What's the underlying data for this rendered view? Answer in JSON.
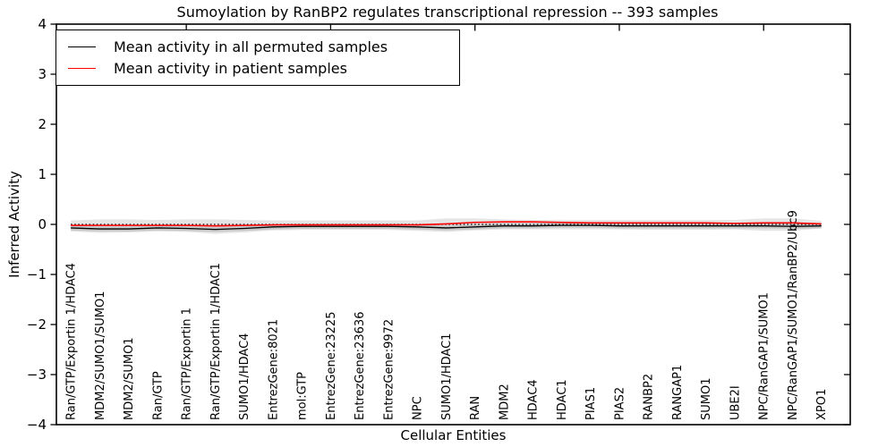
{
  "chart_data": {
    "type": "line",
    "title": "Sumoylation by RanBP2 regulates transcriptional repression -- 393 samples",
    "xlabel": "Cellular Entities",
    "ylabel": "Inferred Activity",
    "ylim": [
      -4,
      4
    ],
    "ytick_values": [
      4,
      3,
      2,
      1,
      0,
      -1,
      -2,
      -3,
      -4
    ],
    "ytick_labels": [
      "4",
      "3",
      "2",
      "1",
      "0",
      "−1",
      "−2",
      "−3",
      "−4"
    ],
    "xtick_values_top": [
      5,
      10,
      15,
      20,
      25
    ],
    "grid": false,
    "legend_position": "upper-left",
    "categories": [
      "Ran/GTP/Exportin 1/HDAC4",
      "MDM2/SUMO1/SUMO1",
      "MDM2/SUMO1",
      "Ran/GTP",
      "Ran/GTP/Exportin 1",
      "Ran/GTP/Exportin 1/HDAC1",
      "SUMO1/HDAC4",
      "EntrezGene:8021",
      "mol:GTP",
      "EntrezGene:23225",
      "EntrezGene:23636",
      "EntrezGene:9972",
      "NPC",
      "SUMO1/HDAC1",
      "RAN",
      "MDM2",
      "HDAC4",
      "HDAC1",
      "PIAS1",
      "PIAS2",
      "RANBP2",
      "RANGAP1",
      "SUMO1",
      "UBE2I",
      "NPC/RanGAP1/SUMO1",
      "NPC/RanGAP1/SUMO1/RanBP2/Ubc9",
      "XPO1"
    ],
    "series": [
      {
        "name": "Mean activity in all permuted samples",
        "color": "#000000",
        "values": [
          -0.07,
          -0.09,
          -0.09,
          -0.07,
          -0.08,
          -0.1,
          -0.08,
          -0.05,
          -0.04,
          -0.04,
          -0.04,
          -0.04,
          -0.05,
          -0.07,
          -0.05,
          -0.03,
          -0.03,
          -0.02,
          -0.02,
          -0.03,
          -0.03,
          -0.03,
          -0.03,
          -0.03,
          -0.03,
          -0.04,
          -0.03
        ]
      },
      {
        "name": "Mean activity in patient samples",
        "color": "#ff0000",
        "values": [
          -0.02,
          -0.02,
          -0.02,
          -0.02,
          -0.02,
          -0.03,
          -0.02,
          -0.01,
          -0.01,
          -0.01,
          -0.01,
          -0.01,
          -0.01,
          0.01,
          0.04,
          0.05,
          0.05,
          0.04,
          0.03,
          0.03,
          0.03,
          0.03,
          0.03,
          0.02,
          0.03,
          0.03,
          0.01
        ]
      }
    ],
    "band": {
      "upper": [
        0.08,
        0.1,
        0.1,
        0.09,
        0.1,
        0.1,
        0.09,
        0.08,
        0.08,
        0.08,
        0.08,
        0.08,
        0.08,
        0.12,
        0.12,
        0.1,
        0.09,
        0.09,
        0.09,
        0.09,
        0.09,
        0.09,
        0.09,
        0.09,
        0.12,
        0.12,
        0.07
      ],
      "lower": [
        -0.14,
        -0.17,
        -0.16,
        -0.14,
        -0.15,
        -0.19,
        -0.16,
        -0.12,
        -0.11,
        -0.11,
        -0.11,
        -0.11,
        -0.13,
        -0.15,
        -0.12,
        -0.1,
        -0.1,
        -0.1,
        -0.1,
        -0.1,
        -0.11,
        -0.11,
        -0.11,
        -0.1,
        -0.13,
        -0.13,
        -0.08
      ],
      "inner_halfwidth": 0.05,
      "color": "#000000",
      "outer_opacity": 0.1,
      "inner_opacity": 0.13
    },
    "zero_line": {
      "value": 0,
      "style": "dotted",
      "color": "#000000"
    },
    "legend": {
      "entries": [
        {
          "label": "Mean activity in all permuted samples",
          "color": "#000000"
        },
        {
          "label": "Mean activity in patient samples",
          "color": "#ff0000"
        }
      ]
    }
  }
}
